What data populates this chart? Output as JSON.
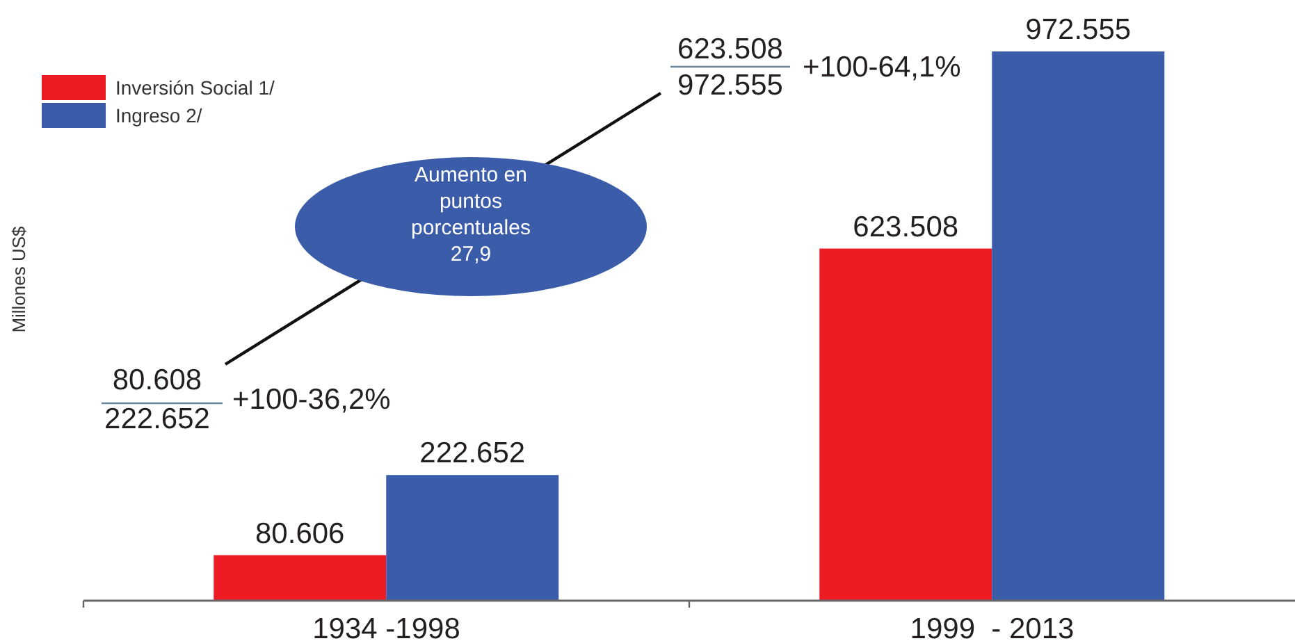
{
  "chart_data": {
    "type": "bar",
    "categories": [
      "1934 -1998",
      "1999  - 2013"
    ],
    "ylabel": "Millones US$",
    "series": [
      {
        "name": "Inversión Social 1/",
        "color": "#ed1c24",
        "values": [
          80606,
          623508
        ],
        "value_labels": [
          "80.606",
          "623.508"
        ]
      },
      {
        "name": "Ingreso 2/",
        "color": "#3b5ca9",
        "values": [
          222652,
          972555
        ],
        "value_labels": [
          "222.652",
          "972.555"
        ]
      }
    ],
    "tick_labels": "x",
    "legend": "top left",
    "annotations": [
      "80.608",
      "222.652",
      "+100-36,2%",
      "623.508",
      "972.555",
      "+100-64,1%",
      "Aumento en puntos porcentuales 27,9"
    ]
  }
}
